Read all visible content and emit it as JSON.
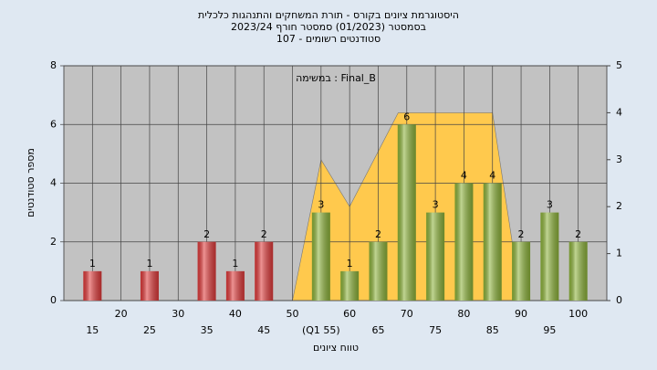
{
  "chart_data": {
    "type": "bar",
    "title": "היסטוגרמת ציונים בקורס - תורת המשחקים והתנהגות כלכלית",
    "subtitle": "בסמסטר  (01/2023)  סמסטר חורף 2023/24",
    "subtitle2": "סטודנטים רשומים - 107",
    "annotation": "במשימה : Final_B",
    "ylabel": "מספר סטודנטים",
    "xlabel": "טווח ציונים",
    "xlim": [
      10,
      105
    ],
    "xticks": [
      15,
      20,
      25,
      30,
      35,
      40,
      45,
      50,
      {
        "value": 55,
        "label": "(Q1 55)"
      },
      60,
      65,
      70,
      75,
      80,
      85,
      90,
      95,
      100
    ],
    "ylim": [
      0,
      8
    ],
    "yticks": [
      0,
      2,
      4,
      6,
      8
    ],
    "y2lim": [
      0,
      5
    ],
    "y2ticks": [
      0,
      1,
      2,
      3,
      4,
      5
    ],
    "grid": true,
    "series": [
      {
        "color": "#e03a3a",
        "x": [
          15,
          25,
          35,
          40,
          45
        ],
        "values": [
          1,
          1,
          2,
          1,
          2
        ]
      },
      {
        "color": "#8db33a",
        "x": [
          55,
          60,
          65,
          70,
          75,
          80,
          85,
          90,
          95,
          100
        ],
        "values": [
          3,
          1,
          2,
          6,
          3,
          4,
          4,
          2,
          3,
          2
        ]
      }
    ],
    "area": {
      "axis": "y2",
      "color": "#ffc94d",
      "x": [
        50,
        55,
        60,
        68.5,
        85,
        90
      ],
      "values": [
        0,
        3,
        2,
        4,
        4,
        0
      ]
    }
  }
}
